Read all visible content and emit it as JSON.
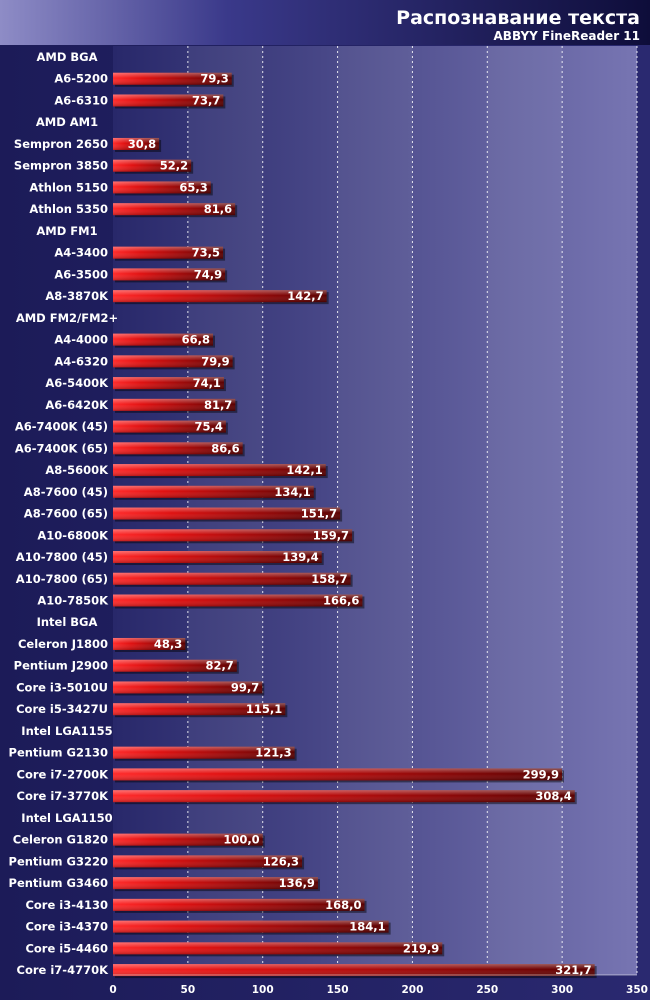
{
  "chart_data": {
    "type": "bar",
    "orientation": "horizontal",
    "title": "Распознавание текста",
    "subtitle": "ABBYY FineReader 11",
    "xlim": [
      0,
      350
    ],
    "x_ticks": [
      "0",
      "50",
      "100",
      "150",
      "200",
      "250",
      "300",
      "350"
    ],
    "x_tick_values": [
      0,
      50,
      100,
      150,
      200,
      250,
      300,
      350
    ],
    "grid": true,
    "categories": [
      "AMD BGA",
      "A6-5200",
      "A6-6310",
      "AMD AM1",
      "Sempron 2650",
      "Sempron 3850",
      "Athlon 5150",
      "Athlon 5350",
      "AMD FM1",
      "A4-3400",
      "A6-3500",
      "A8-3870K",
      "AMD FM2/FM2+",
      "A4-4000",
      "A4-6320",
      "A6-5400K",
      "A6-6420K",
      "A6-7400K (45)",
      "A6-7400K (65)",
      "A8-5600K",
      "A8-7600 (45)",
      "A8-7600 (65)",
      "A10-6800K",
      "A10-7800 (45)",
      "A10-7800 (65)",
      "A10-7850K",
      "Intel BGA",
      "Celeron J1800",
      "Pentium J2900",
      "Core i3-5010U",
      "Core i5-3427U",
      "Intel LGA1155",
      "Pentium G2130",
      "Core i7-2700K",
      "Core i7-3770K",
      "Intel LGA1150",
      "Celeron G1820",
      "Pentium G3220",
      "Pentium G3460",
      "Core i3-4130",
      "Core i3-4370",
      "Core i5-4460",
      "Core i7-4770K"
    ],
    "values": [
      null,
      79.3,
      73.7,
      null,
      30.8,
      52.2,
      65.3,
      81.6,
      null,
      73.5,
      74.9,
      142.7,
      null,
      66.8,
      79.9,
      74.1,
      81.7,
      75.4,
      86.6,
      142.1,
      134.1,
      151.7,
      159.7,
      139.4,
      158.7,
      166.6,
      null,
      48.3,
      82.7,
      99.7,
      115.1,
      null,
      121.3,
      299.9,
      308.4,
      null,
      100.0,
      126.3,
      136.9,
      168.0,
      184.1,
      219.9,
      321.7
    ],
    "value_labels": [
      "",
      "79,3",
      "73,7",
      "",
      "30,8",
      "52,2",
      "65,3",
      "81,6",
      "",
      "73,5",
      "74,9",
      "142,7",
      "",
      "66,8",
      "79,9",
      "74,1",
      "81,7",
      "75,4",
      "86,6",
      "142,1",
      "134,1",
      "151,7",
      "159,7",
      "139,4",
      "158,7",
      "166,6",
      "",
      "48,3",
      "82,7",
      "99,7",
      "115,1",
      "",
      "121,3",
      "299,9",
      "308,4",
      "",
      "100,0",
      "126,3",
      "136,9",
      "168,0",
      "184,1",
      "219,9",
      "321,7"
    ],
    "colors": {
      "background": "#1d1c5a",
      "plot_left": "#29296b",
      "plot_right": "#7a78b4",
      "bar_light": "#ff2a2a",
      "bar_dark": "#6e0000",
      "text": "#ffffff"
    }
  }
}
